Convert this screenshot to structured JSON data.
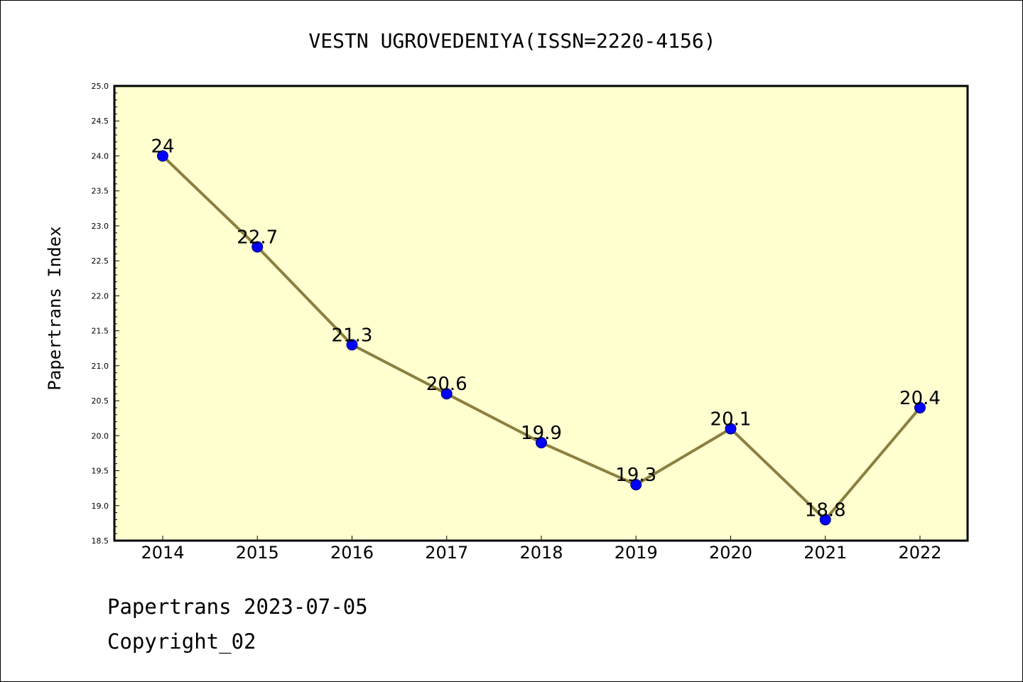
{
  "chart_data": {
    "type": "line",
    "title": "VESTN UGROVEDENIYA(ISSN=2220-4156)",
    "ylabel": "Papertrans Index",
    "xlabel": "",
    "categories": [
      "2014",
      "2015",
      "2016",
      "2017",
      "2018",
      "2019",
      "2020",
      "2021",
      "2022"
    ],
    "values": [
      24,
      22.7,
      21.3,
      20.6,
      19.9,
      19.3,
      20.1,
      18.8,
      20.4
    ],
    "data_labels": [
      "24",
      "22.7",
      "21.3",
      "20.6",
      "19.9",
      "19.3",
      "20.1",
      "18.8",
      "20.4"
    ],
    "ylim": [
      18.5,
      25.0
    ],
    "yticks": [
      "18.5",
      "19.0",
      "19.5",
      "20.0",
      "20.5",
      "21.0",
      "21.5",
      "22.0",
      "22.5",
      "23.0",
      "23.5",
      "24.0",
      "24.5",
      "25.0"
    ],
    "grid": false,
    "legend": "none",
    "colors": {
      "plot_background": "#ffffd0",
      "line": "#8b8040",
      "marker": "#0000ff",
      "marker_edge": "#00006a"
    }
  },
  "footer": {
    "date_line": "Papertrans 2023-07-05",
    "copyright": "Copyright_02"
  }
}
